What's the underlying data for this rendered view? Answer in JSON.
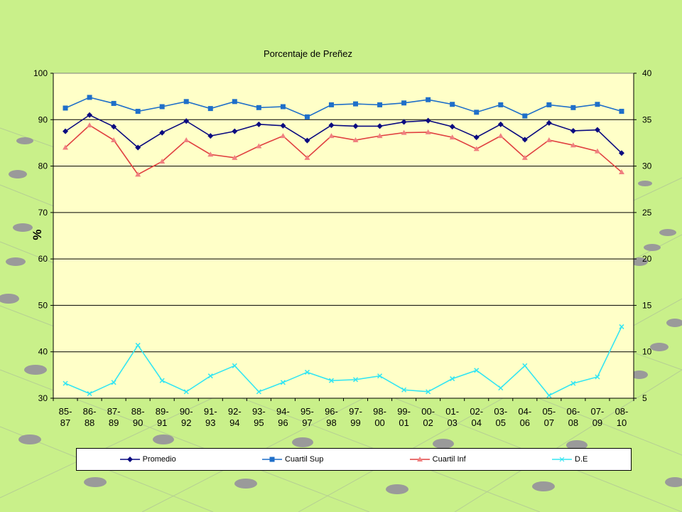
{
  "chart_data": {
    "type": "line",
    "title": "Porcentaje de Preñez",
    "ylabel": "%",
    "ylim": [
      30,
      100
    ],
    "y2lim": [
      5,
      40
    ],
    "yticks": [
      30,
      40,
      50,
      60,
      70,
      80,
      90,
      100
    ],
    "y2ticks": [
      5,
      10,
      15,
      20,
      25,
      30,
      35,
      40
    ],
    "grid": true,
    "legend_position": "bottom",
    "categories": [
      "85-87",
      "86-88",
      "87-89",
      "88-90",
      "89-91",
      "90-92",
      "91-93",
      "92-94",
      "93-95",
      "94-96",
      "95-97",
      "96-98",
      "97-99",
      "98-00",
      "99-01",
      "00-02",
      "01-03",
      "02-04",
      "03-05",
      "04-06",
      "05-07",
      "06-08",
      "07-09",
      "08-10"
    ],
    "category_labels": [
      [
        "85-",
        "87"
      ],
      [
        "86-",
        "88"
      ],
      [
        "87-",
        "89"
      ],
      [
        "88-",
        "90"
      ],
      [
        "89-",
        "91"
      ],
      [
        "90-",
        "92"
      ],
      [
        "91-",
        "93"
      ],
      [
        "92-",
        "94"
      ],
      [
        "93-",
        "95"
      ],
      [
        "94-",
        "96"
      ],
      [
        "95-",
        "97"
      ],
      [
        "96-",
        "98"
      ],
      [
        "97-",
        "99"
      ],
      [
        "98-",
        "00"
      ],
      [
        "99-",
        "01"
      ],
      [
        "00-",
        "02"
      ],
      [
        "01-",
        "03"
      ],
      [
        "02-",
        "04"
      ],
      [
        "03-",
        "05"
      ],
      [
        "04-",
        "06"
      ],
      [
        "05-",
        "07"
      ],
      [
        "06-",
        "08"
      ],
      [
        "07-",
        "09"
      ],
      [
        "08-",
        "10"
      ]
    ],
    "series": [
      {
        "name": "Promedio",
        "color": "#0a0a80",
        "marker": "diamond",
        "axis": "left",
        "values": [
          87.5,
          91,
          88.5,
          84,
          87.2,
          89.7,
          86.5,
          87.5,
          89,
          88.7,
          85.5,
          88.8,
          88.6,
          88.6,
          89.5,
          89.8,
          88.5,
          86.2,
          89,
          85.7,
          89.3,
          87.6,
          87.8,
          82.8
        ]
      },
      {
        "name": "Cuartil Sup",
        "color": "#1f6fc9",
        "marker": "square",
        "axis": "left",
        "values": [
          92.5,
          94.8,
          93.5,
          91.8,
          92.8,
          93.9,
          92.4,
          93.9,
          92.6,
          92.8,
          90.6,
          93.2,
          93.4,
          93.2,
          93.6,
          94.3,
          93.3,
          91.6,
          93.2,
          90.8,
          93.2,
          92.6,
          93.3,
          91.8
        ]
      },
      {
        "name": "Cuartil Inf",
        "color": "#e04040",
        "marker": "triangle",
        "axis": "left",
        "values": [
          84,
          88.8,
          85.6,
          78.2,
          81,
          85.6,
          82.5,
          81.8,
          84.3,
          86.5,
          81.8,
          86.5,
          85.6,
          86.5,
          87.2,
          87.3,
          86.2,
          83.7,
          86.5,
          81.8,
          85.6,
          84.5,
          83.2,
          78.7
        ]
      },
      {
        "name": "D.E",
        "color": "#33e5f2",
        "marker": "x",
        "axis": "right",
        "values": [
          6.6,
          5.5,
          6.7,
          10.7,
          6.9,
          5.7,
          7.4,
          8.5,
          5.7,
          6.7,
          7.8,
          6.9,
          7.0,
          7.4,
          5.9,
          5.7,
          7.1,
          8.0,
          6.1,
          8.5,
          5.3,
          6.6,
          7.3,
          12.7
        ]
      }
    ]
  }
}
